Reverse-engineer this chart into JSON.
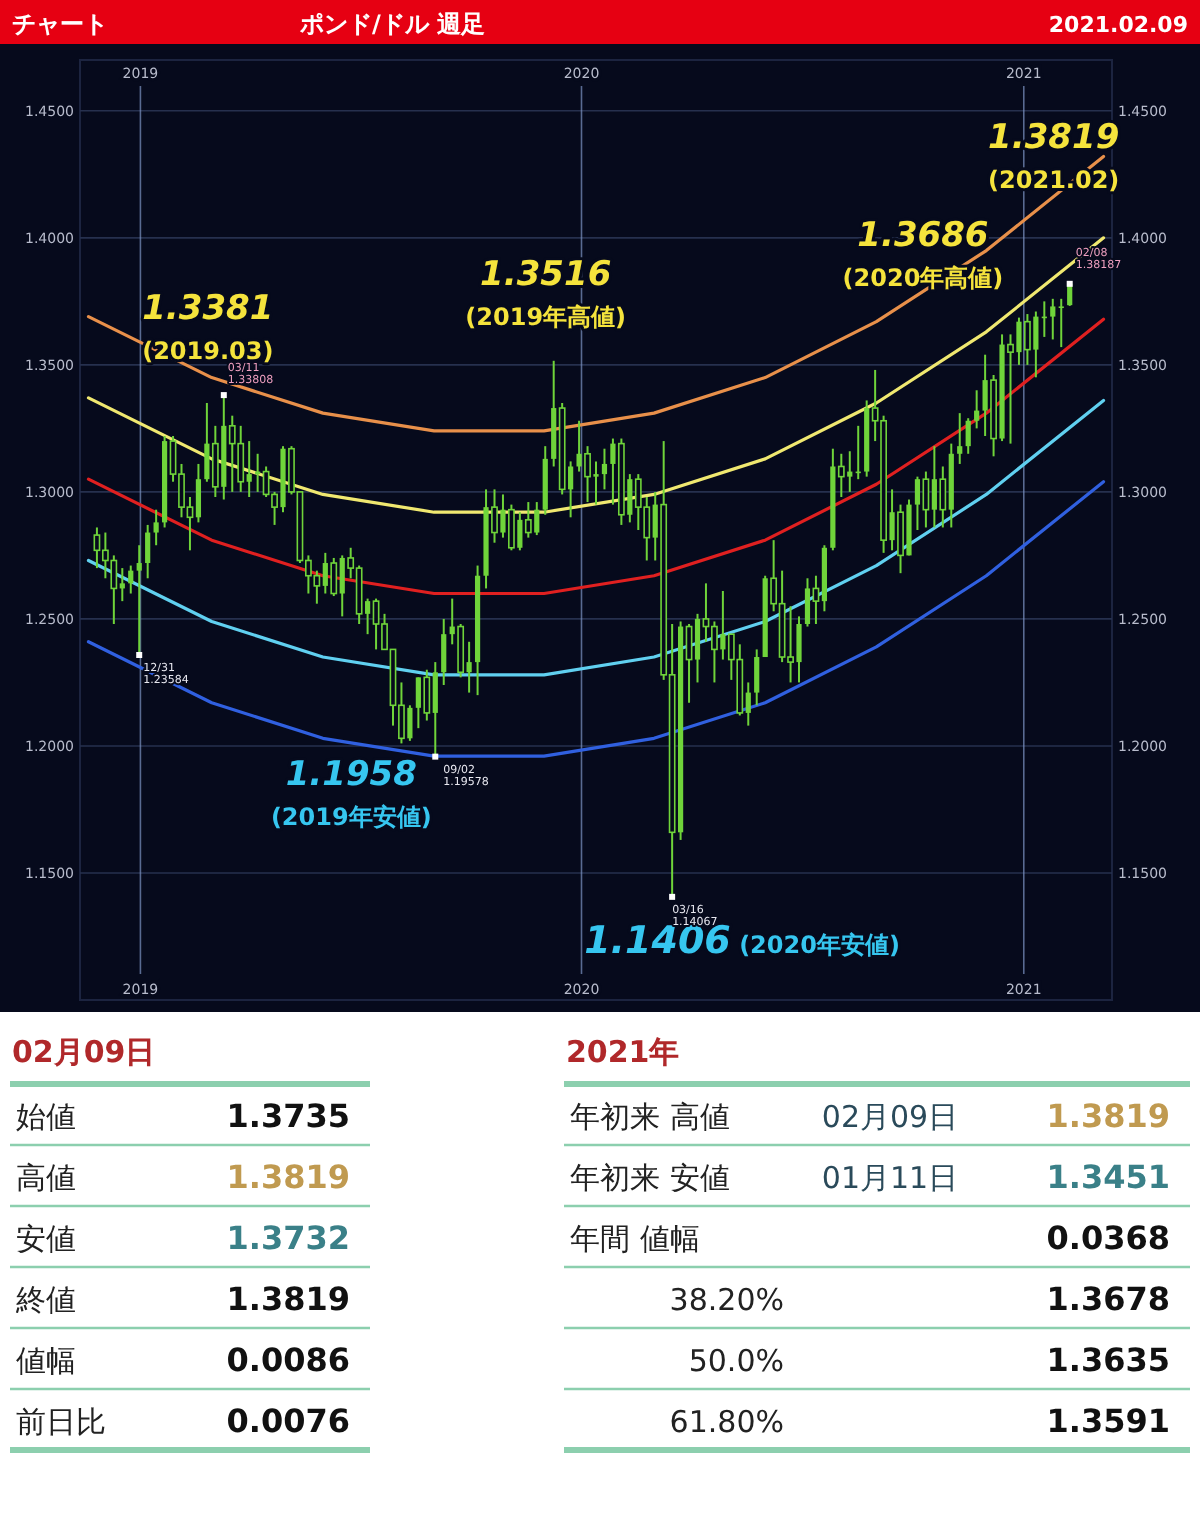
{
  "chart_data": [
    {
      "type": "candlestick",
      "title": "ポンド/ドル 週足",
      "subtitle": "チャート",
      "color": "#6fd43a",
      "grid": true,
      "xlim": [
        "2018-11-12",
        "2021-03-15"
      ],
      "xticks": [
        "2019",
        "2020",
        "2021"
      ],
      "x2lim": [
        "2018-11-12",
        "2021-03-15"
      ],
      "x2ticks": [
        "2019",
        "2020",
        "2021"
      ],
      "ylim": [
        1.1,
        1.47
      ],
      "yticks": [
        {
          "value": 1.15,
          "label": "1.1500"
        },
        {
          "value": 1.2,
          "label": "1.2000"
        },
        {
          "value": 1.25,
          "label": "1.2500"
        },
        {
          "value": 1.3,
          "label": "1.3000"
        },
        {
          "value": 1.35,
          "label": "1.3500"
        },
        {
          "value": 1.4,
          "label": "1.4000"
        },
        {
          "value": 1.45,
          "label": "1.4500"
        }
      ],
      "y2lim": [
        1.1,
        1.47
      ],
      "y2ticks": [
        {
          "value": 1.15,
          "label": "1.1500"
        },
        {
          "value": 1.2,
          "label": "1.2000"
        },
        {
          "value": 1.25,
          "label": "1.2500"
        },
        {
          "value": 1.3,
          "label": "1.3000"
        },
        {
          "value": 1.35,
          "label": "1.3500"
        },
        {
          "value": 1.4,
          "label": "1.4000"
        },
        {
          "value": 1.45,
          "label": "1.4500"
        }
      ],
      "x": [
        "2018-11-26",
        "2018-12-03",
        "2018-12-10",
        "2018-12-17",
        "2018-12-24",
        "2018-12-31",
        "2019-01-07",
        "2019-01-14",
        "2019-01-21",
        "2019-01-28",
        "2019-02-04",
        "2019-02-11",
        "2019-02-18",
        "2019-02-25",
        "2019-03-04",
        "2019-03-11",
        "2019-03-18",
        "2019-03-25",
        "2019-04-01",
        "2019-04-08",
        "2019-04-15",
        "2019-04-22",
        "2019-04-29",
        "2019-05-06",
        "2019-05-13",
        "2019-05-20",
        "2019-05-27",
        "2019-06-03",
        "2019-06-10",
        "2019-06-17",
        "2019-06-24",
        "2019-07-01",
        "2019-07-08",
        "2019-07-15",
        "2019-07-22",
        "2019-07-29",
        "2019-08-05",
        "2019-08-12",
        "2019-08-19",
        "2019-08-26",
        "2019-09-02",
        "2019-09-09",
        "2019-09-16",
        "2019-09-23",
        "2019-09-30",
        "2019-10-07",
        "2019-10-14",
        "2019-10-21",
        "2019-10-28",
        "2019-11-04",
        "2019-11-11",
        "2019-11-18",
        "2019-11-25",
        "2019-12-02",
        "2019-12-09",
        "2019-12-16",
        "2019-12-23",
        "2019-12-30",
        "2020-01-06",
        "2020-01-13",
        "2020-01-20",
        "2020-01-27",
        "2020-02-03",
        "2020-02-10",
        "2020-02-17",
        "2020-02-24",
        "2020-03-02",
        "2020-03-09",
        "2020-03-16",
        "2020-03-23",
        "2020-03-30",
        "2020-04-06",
        "2020-04-13",
        "2020-04-20",
        "2020-04-27",
        "2020-05-04",
        "2020-05-11",
        "2020-05-18",
        "2020-05-25",
        "2020-06-01",
        "2020-06-08",
        "2020-06-15",
        "2020-06-22",
        "2020-06-29",
        "2020-07-06",
        "2020-07-13",
        "2020-07-20",
        "2020-07-27",
        "2020-08-03",
        "2020-08-10",
        "2020-08-17",
        "2020-08-24",
        "2020-08-31",
        "2020-09-07",
        "2020-09-14",
        "2020-09-21",
        "2020-09-28",
        "2020-10-05",
        "2020-10-12",
        "2020-10-19",
        "2020-10-26",
        "2020-11-02",
        "2020-11-09",
        "2020-11-16",
        "2020-11-23",
        "2020-11-30",
        "2020-12-07",
        "2020-12-14",
        "2020-12-21",
        "2020-12-28",
        "2021-01-04",
        "2021-01-11",
        "2021-01-18",
        "2021-01-25",
        "2021-02-01",
        "2021-02-08"
      ],
      "ohlc": [
        [
          1.283,
          1.286,
          1.27,
          1.277
        ],
        [
          1.277,
          1.284,
          1.266,
          1.273
        ],
        [
          1.273,
          1.275,
          1.248,
          1.262
        ],
        [
          1.262,
          1.27,
          1.257,
          1.264
        ],
        [
          1.264,
          1.271,
          1.26,
          1.269
        ],
        [
          1.269,
          1.279,
          1.2358,
          1.272
        ],
        [
          1.272,
          1.287,
          1.266,
          1.284
        ],
        [
          1.284,
          1.293,
          1.279,
          1.288
        ],
        [
          1.288,
          1.322,
          1.286,
          1.32
        ],
        [
          1.32,
          1.322,
          1.304,
          1.307
        ],
        [
          1.307,
          1.311,
          1.29,
          1.294
        ],
        [
          1.294,
          1.298,
          1.277,
          1.29
        ],
        [
          1.29,
          1.311,
          1.288,
          1.305
        ],
        [
          1.305,
          1.335,
          1.304,
          1.319
        ],
        [
          1.319,
          1.326,
          1.298,
          1.302
        ],
        [
          1.302,
          1.3381,
          1.297,
          1.326
        ],
        [
          1.326,
          1.33,
          1.3,
          1.319
        ],
        [
          1.319,
          1.326,
          1.3,
          1.304
        ],
        [
          1.304,
          1.32,
          1.298,
          1.307
        ],
        [
          1.307,
          1.315,
          1.3,
          1.308
        ],
        [
          1.308,
          1.31,
          1.298,
          1.299
        ],
        [
          1.299,
          1.3,
          1.287,
          1.294
        ],
        [
          1.294,
          1.318,
          1.292,
          1.317
        ],
        [
          1.317,
          1.318,
          1.299,
          1.3
        ],
        [
          1.3,
          1.3,
          1.272,
          1.273
        ],
        [
          1.273,
          1.275,
          1.26,
          1.267
        ],
        [
          1.267,
          1.269,
          1.256,
          1.263
        ],
        [
          1.263,
          1.276,
          1.26,
          1.272
        ],
        [
          1.272,
          1.274,
          1.259,
          1.26
        ],
        [
          1.26,
          1.275,
          1.251,
          1.274
        ],
        [
          1.274,
          1.278,
          1.266,
          1.27
        ],
        [
          1.27,
          1.271,
          1.248,
          1.252
        ],
        [
          1.252,
          1.258,
          1.244,
          1.257
        ],
        [
          1.257,
          1.258,
          1.238,
          1.248
        ],
        [
          1.248,
          1.252,
          1.238,
          1.238
        ],
        [
          1.238,
          1.238,
          1.208,
          1.216
        ],
        [
          1.216,
          1.225,
          1.201,
          1.203
        ],
        [
          1.203,
          1.216,
          1.202,
          1.215
        ],
        [
          1.215,
          1.227,
          1.207,
          1.227
        ],
        [
          1.227,
          1.23,
          1.21,
          1.213
        ],
        [
          1.213,
          1.233,
          1.1958,
          1.229
        ],
        [
          1.229,
          1.25,
          1.224,
          1.244
        ],
        [
          1.244,
          1.258,
          1.24,
          1.247
        ],
        [
          1.247,
          1.248,
          1.227,
          1.229
        ],
        [
          1.229,
          1.241,
          1.221,
          1.233
        ],
        [
          1.233,
          1.271,
          1.22,
          1.267
        ],
        [
          1.267,
          1.301,
          1.262,
          1.294
        ],
        [
          1.294,
          1.301,
          1.28,
          1.284
        ],
        [
          1.284,
          1.299,
          1.282,
          1.293
        ],
        [
          1.293,
          1.295,
          1.277,
          1.278
        ],
        [
          1.278,
          1.292,
          1.277,
          1.289
        ],
        [
          1.289,
          1.296,
          1.282,
          1.284
        ],
        [
          1.284,
          1.296,
          1.283,
          1.293
        ],
        [
          1.293,
          1.318,
          1.291,
          1.313
        ],
        [
          1.313,
          1.3516,
          1.31,
          1.333
        ],
        [
          1.333,
          1.335,
          1.299,
          1.301
        ],
        [
          1.301,
          1.312,
          1.29,
          1.31
        ],
        [
          1.31,
          1.328,
          1.308,
          1.315
        ],
        [
          1.315,
          1.318,
          1.296,
          1.306
        ],
        [
          1.306,
          1.312,
          1.295,
          1.307
        ],
        [
          1.307,
          1.317,
          1.301,
          1.311
        ],
        [
          1.311,
          1.321,
          1.295,
          1.319
        ],
        [
          1.319,
          1.321,
          1.287,
          1.291
        ],
        [
          1.291,
          1.307,
          1.288,
          1.305
        ],
        [
          1.305,
          1.307,
          1.285,
          1.294
        ],
        [
          1.294,
          1.298,
          1.273,
          1.282
        ],
        [
          1.282,
          1.3,
          1.273,
          1.295
        ],
        [
          1.295,
          1.32,
          1.226,
          1.228
        ],
        [
          1.228,
          1.248,
          1.1406,
          1.166
        ],
        [
          1.166,
          1.249,
          1.163,
          1.247
        ],
        [
          1.247,
          1.248,
          1.217,
          1.234
        ],
        [
          1.234,
          1.252,
          1.225,
          1.25
        ],
        [
          1.25,
          1.264,
          1.241,
          1.247
        ],
        [
          1.247,
          1.249,
          1.225,
          1.238
        ],
        [
          1.238,
          1.261,
          1.234,
          1.244
        ],
        [
          1.244,
          1.244,
          1.226,
          1.234
        ],
        [
          1.234,
          1.24,
          1.212,
          1.213
        ],
        [
          1.213,
          1.225,
          1.208,
          1.221
        ],
        [
          1.221,
          1.238,
          1.216,
          1.235
        ],
        [
          1.235,
          1.267,
          1.235,
          1.266
        ],
        [
          1.266,
          1.281,
          1.253,
          1.256
        ],
        [
          1.256,
          1.269,
          1.233,
          1.235
        ],
        [
          1.235,
          1.255,
          1.225,
          1.233
        ],
        [
          1.233,
          1.251,
          1.225,
          1.248
        ],
        [
          1.248,
          1.266,
          1.247,
          1.262
        ],
        [
          1.262,
          1.267,
          1.248,
          1.257
        ],
        [
          1.257,
          1.279,
          1.253,
          1.278
        ],
        [
          1.278,
          1.317,
          1.277,
          1.31
        ],
        [
          1.31,
          1.315,
          1.298,
          1.306
        ],
        [
          1.306,
          1.316,
          1.3,
          1.308
        ],
        [
          1.308,
          1.326,
          1.305,
          1.308
        ],
        [
          1.308,
          1.336,
          1.306,
          1.333
        ],
        [
          1.333,
          1.348,
          1.32,
          1.328
        ],
        [
          1.328,
          1.33,
          1.276,
          1.281
        ],
        [
          1.281,
          1.301,
          1.277,
          1.292
        ],
        [
          1.292,
          1.295,
          1.268,
          1.275
        ],
        [
          1.275,
          1.297,
          1.275,
          1.295
        ],
        [
          1.295,
          1.306,
          1.285,
          1.305
        ],
        [
          1.305,
          1.308,
          1.286,
          1.293
        ],
        [
          1.293,
          1.318,
          1.286,
          1.305
        ],
        [
          1.305,
          1.31,
          1.286,
          1.293
        ],
        [
          1.293,
          1.319,
          1.286,
          1.315
        ],
        [
          1.315,
          1.331,
          1.311,
          1.318
        ],
        [
          1.318,
          1.329,
          1.315,
          1.328
        ],
        [
          1.328,
          1.34,
          1.325,
          1.332
        ],
        [
          1.332,
          1.354,
          1.322,
          1.344
        ],
        [
          1.344,
          1.346,
          1.314,
          1.321
        ],
        [
          1.321,
          1.362,
          1.32,
          1.358
        ],
        [
          1.358,
          1.362,
          1.319,
          1.355
        ],
        [
          1.355,
          1.3686,
          1.35,
          1.367
        ],
        [
          1.367,
          1.37,
          1.35,
          1.356
        ],
        [
          1.356,
          1.371,
          1.3451,
          1.369
        ],
        [
          1.369,
          1.375,
          1.361,
          1.369
        ],
        [
          1.369,
          1.376,
          1.36,
          1.373
        ],
        [
          1.373,
          1.376,
          1.357,
          1.373
        ],
        [
          1.3735,
          1.3819,
          1.3732,
          1.3819
        ]
      ],
      "series": [
        {
          "type": "line",
          "color": "#e8904a",
          "x": [
            "2018-11-19",
            "2019-03-01",
            "2019-06-01",
            "2019-09-01",
            "2019-12-01",
            "2020-03-01",
            "2020-06-01",
            "2020-09-01",
            "2020-12-01",
            "2021-03-08"
          ],
          "values": [
            1.369,
            1.345,
            1.331,
            1.324,
            1.324,
            1.331,
            1.345,
            1.367,
            1.395,
            1.432
          ]
        },
        {
          "type": "line",
          "color": "#f0e870",
          "x": [
            "2018-11-19",
            "2019-03-01",
            "2019-06-01",
            "2019-09-01",
            "2019-12-01",
            "2020-03-01",
            "2020-06-01",
            "2020-09-01",
            "2020-12-01",
            "2021-03-08"
          ],
          "values": [
            1.337,
            1.313,
            1.299,
            1.292,
            1.292,
            1.299,
            1.313,
            1.335,
            1.363,
            1.4
          ]
        },
        {
          "type": "line",
          "color": "#e02020",
          "x": [
            "2018-11-19",
            "2019-03-01",
            "2019-06-01",
            "2019-09-01",
            "2019-12-01",
            "2020-03-01",
            "2020-06-01",
            "2020-09-01",
            "2020-12-01",
            "2021-03-08"
          ],
          "values": [
            1.305,
            1.281,
            1.267,
            1.26,
            1.26,
            1.267,
            1.281,
            1.303,
            1.331,
            1.368
          ]
        },
        {
          "type": "line",
          "color": "#60d0f0",
          "x": [
            "2018-11-19",
            "2019-03-01",
            "2019-06-01",
            "2019-09-01",
            "2019-12-01",
            "2020-03-01",
            "2020-06-01",
            "2020-09-01",
            "2020-12-01",
            "2021-03-08"
          ],
          "values": [
            1.273,
            1.249,
            1.235,
            1.228,
            1.228,
            1.235,
            1.249,
            1.271,
            1.299,
            1.336
          ]
        },
        {
          "type": "line",
          "color": "#3060e0",
          "x": [
            "2018-11-19",
            "2019-03-01",
            "2019-06-01",
            "2019-09-01",
            "2019-12-01",
            "2020-03-01",
            "2020-06-01",
            "2020-09-01",
            "2020-12-01",
            "2021-03-08"
          ],
          "values": [
            1.241,
            1.217,
            1.203,
            1.196,
            1.196,
            1.203,
            1.217,
            1.239,
            1.267,
            1.304
          ]
        }
      ],
      "annotations": [
        "2021.02.09",
        {
          "text": "1.3381\n(2019.03)",
          "x": "2019-03-11",
          "y": 1.3381
        },
        {
          "text": "03/11\n1.33808",
          "x": "2019-03-11",
          "y": 1.3381
        },
        {
          "text": "1.3516\n(2019年高値)",
          "x": "2019-12-09",
          "y": 1.3516
        },
        {
          "text": "1.1958\n(2019年安値)",
          "x": "2019-09-02",
          "y": 1.1958
        },
        {
          "text": "09/02\n1.19578",
          "x": "2019-09-02",
          "y": 1.1958
        },
        {
          "text": "1.1406 (2020年安値)",
          "x": "2020-03-16",
          "y": 1.1406
        },
        {
          "text": "03/16\n1.14067",
          "x": "2020-03-16",
          "y": 1.1406
        },
        {
          "text": "1.3686\n(2020年高値)",
          "x": "2020-12-28",
          "y": 1.3686
        },
        {
          "text": "1.3819\n(2021.02)",
          "x": "2021-02-08",
          "y": 1.3819
        },
        {
          "text": "02/08\n1.38187",
          "x": "2021-02-08",
          "y": 1.3819
        },
        {
          "text": "12/31\n1.23584",
          "x": "2018-12-31",
          "y": 1.2358
        }
      ]
    },
    {
      "type": "other",
      "title": "02月09日",
      "data_labels": true,
      "categories": [
        "始値",
        "高値",
        "安値",
        "終値",
        "値幅",
        "前日比"
      ],
      "values": [
        1.3735,
        1.3819,
        1.3732,
        1.3819,
        0.0086,
        0.0076
      ],
      "colors": [
        "#111111",
        "#c09a50",
        "#3a8088",
        "#111111",
        "#111111",
        "#111111"
      ]
    },
    {
      "type": "other",
      "title": "2021年",
      "data_labels": true,
      "categories": [
        "年初来 高値",
        "年初来 安値",
        "年間 値幅",
        "38.20%",
        "50.0%",
        "61.80%"
      ],
      "values": [
        1.3819,
        1.3451,
        0.0368,
        1.3678,
        1.3635,
        1.3591
      ],
      "colors": [
        "#c09a50",
        "#3a8088",
        "#111111",
        "#111111",
        "#111111",
        "#111111"
      ],
      "annotations": [
        {
          "text": "02月09日",
          "y": "年初来 高値"
        },
        {
          "text": "01月11日",
          "y": "年初来 安値"
        }
      ]
    }
  ]
}
